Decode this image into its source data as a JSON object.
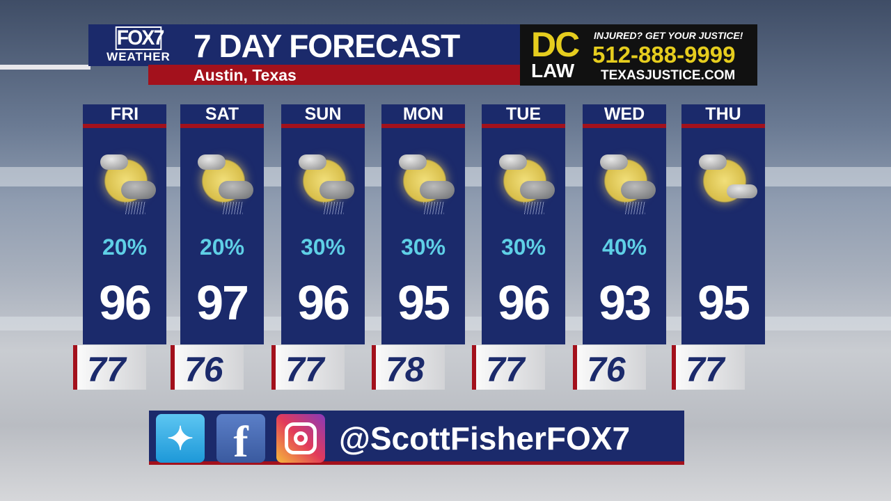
{
  "header": {
    "logo_main": "FOX7",
    "logo_sub": "WEATHER",
    "title": "7 DAY FORECAST",
    "location": "Austin, Texas"
  },
  "ad": {
    "brand_top": "DC",
    "brand_bottom": "LAW",
    "tagline": "INJURED? GET YOUR JUSTICE!",
    "phone": "512-888-9999",
    "website": "TEXASJUSTICE.COM"
  },
  "days": [
    {
      "day": "FRI",
      "precip": "20%",
      "high": "96",
      "low": "77",
      "icon": "partly-sunny-showers-icon"
    },
    {
      "day": "SAT",
      "precip": "20%",
      "high": "97",
      "low": "76",
      "icon": "partly-sunny-showers-icon"
    },
    {
      "day": "SUN",
      "precip": "30%",
      "high": "96",
      "low": "77",
      "icon": "partly-sunny-showers-icon"
    },
    {
      "day": "MON",
      "precip": "30%",
      "high": "95",
      "low": "78",
      "icon": "partly-sunny-showers-icon"
    },
    {
      "day": "TUE",
      "precip": "30%",
      "high": "96",
      "low": "77",
      "icon": "partly-sunny-showers-icon"
    },
    {
      "day": "WED",
      "precip": "40%",
      "high": "93",
      "low": "76",
      "icon": "partly-sunny-showers-icon"
    },
    {
      "day": "THU",
      "precip": "",
      "high": "95",
      "low": "77",
      "icon": "partly-cloudy-icon"
    }
  ],
  "social": {
    "icons": [
      "twitter-icon",
      "facebook-icon",
      "instagram-icon"
    ],
    "facebook_glyph": "f",
    "handle": "@ScottFisherFOX7"
  },
  "colors": {
    "navy": "#1b2a6b",
    "red": "#a3111c",
    "precip": "#5fd0e6",
    "ad_yellow": "#e6cd1e"
  }
}
